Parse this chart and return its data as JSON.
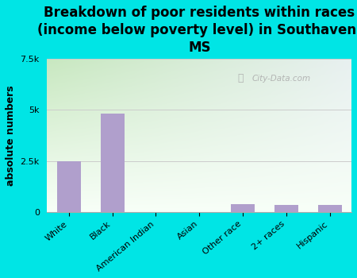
{
  "title": "Breakdown of poor residents within races\n(income below poverty level) in Southaven,\nMS",
  "ylabel": "absolute numbers",
  "categories": [
    "White",
    "Black",
    "American Indian",
    "Asian",
    "Other race",
    "2+ races",
    "Hispanic"
  ],
  "values": [
    2500,
    4800,
    0,
    0,
    400,
    350,
    350
  ],
  "bar_color": "#b09fcc",
  "background_color": "#00e5e5",
  "plot_bg_topleft": "#c8e8c0",
  "plot_bg_topright": "#e8f0f0",
  "plot_bg_bottom": "#f0f8f0",
  "ylim": [
    0,
    7500
  ],
  "yticks": [
    0,
    2500,
    5000,
    7500
  ],
  "ytick_labels": [
    "0",
    "2.5k",
    "5k",
    "7.5k"
  ],
  "grid_color": "#cccccc",
  "watermark": "City-Data.com",
  "title_fontsize": 12,
  "ylabel_fontsize": 9,
  "tick_fontsize": 8
}
